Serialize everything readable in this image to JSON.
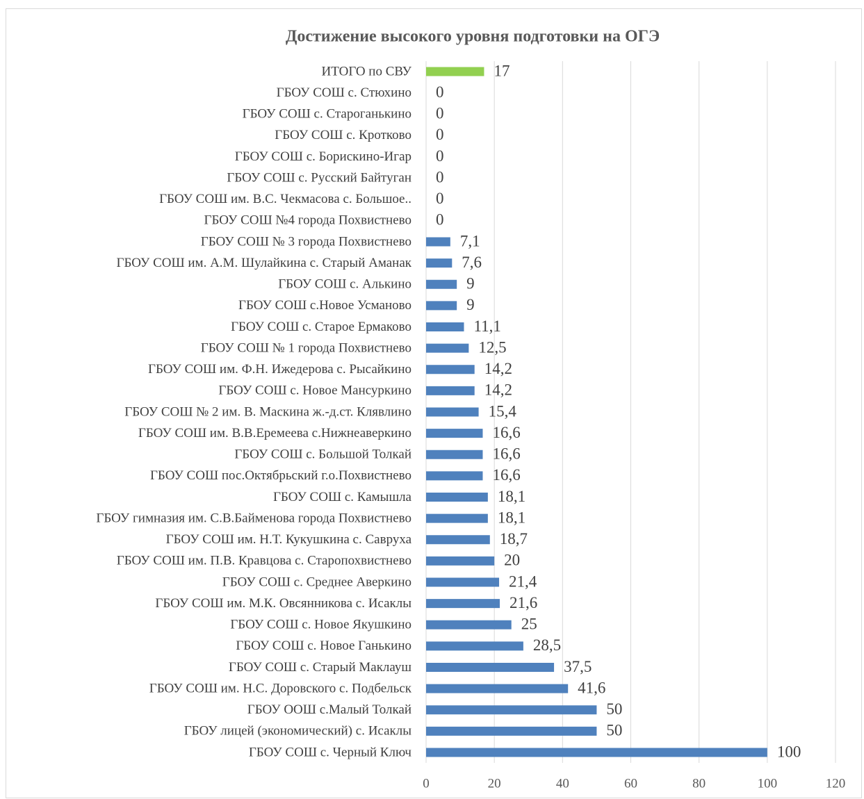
{
  "chart_data": {
    "type": "barh",
    "title": "Достижение высокого уровня подготовки на ОГЭ",
    "categories": [
      "ИТОГО по СВУ",
      "ГБОУ СОШ с. Стюхино",
      "ГБОУ СОШ с. Староганькино",
      "ГБОУ СОШ с. Кротково",
      "ГБОУ СОШ с. Борискино-Игар",
      "ГБОУ СОШ с. Русский Байтуган",
      "ГБОУ СОШ им. В.С. Чекмасова с. Большое..",
      "ГБОУ СОШ №4 города Похвистнево",
      "ГБОУ СОШ № 3 города Похвистнево",
      "ГБОУ СОШ им. А.М. Шулайкина с. Старый Аманак",
      "ГБОУ СОШ с. Алькино",
      "ГБОУ СОШ с.Новое Усманово",
      "ГБОУ СОШ с. Старое Ермаково",
      "ГБОУ СОШ № 1 города Похвистнево",
      "ГБОУ СОШ им. Ф.Н. Ижедерова с. Рысайкино",
      "ГБОУ СОШ с. Новое Мансуркино",
      "ГБОУ СОШ № 2 им. В. Маскина ж.-д.ст. Клявлино",
      "ГБОУ СОШ им. В.В.Еремеева с.Нижнеаверкино",
      "ГБОУ СОШ с. Большой Толкай",
      "ГБОУ СОШ пос.Октябрьский г.о.Похвистнево",
      "ГБОУ СОШ с. Камышла",
      "ГБОУ гимназия им. С.В.Байменова города Похвистнево",
      "ГБОУ СОШ им. Н.Т. Кукушкина с. Савруха",
      "ГБОУ СОШ им. П.В. Кравцова с. Старопохвистнево",
      "ГБОУ СОШ с. Среднее Аверкино",
      "ГБОУ СОШ им. М.К. Овсянникова с. Исаклы",
      "ГБОУ СОШ с. Новое Якушкино",
      "ГБОУ СОШ с. Новое Ганькино",
      "ГБОУ СОШ с. Старый Маклауш",
      "ГБОУ СОШ им. Н.С. Доровского с. Подбельск",
      "ГБОУ ООШ с.Малый Толкай",
      "ГБОУ лицей (экономический) с. Исаклы",
      "ГБОУ СОШ с. Черный Ключ"
    ],
    "values": [
      17,
      0,
      0,
      0,
      0,
      0,
      0,
      0,
      7.1,
      7.6,
      9,
      9,
      11.1,
      12.5,
      14.2,
      14.2,
      15.4,
      16.6,
      16.6,
      16.6,
      18.1,
      18.1,
      18.7,
      20,
      21.4,
      21.6,
      25,
      28.5,
      37.5,
      41.6,
      50,
      50,
      100
    ],
    "value_labels": [
      "17",
      "0",
      "0",
      "0",
      "0",
      "0",
      "0",
      "0",
      "7,1",
      "7,6",
      "9",
      "9",
      "11,1",
      "12,5",
      "14,2",
      "14,2",
      "15,4",
      "16,6",
      "16,6",
      "16,6",
      "18,1",
      "18,1",
      "18,7",
      "20",
      "21,4",
      "21,6",
      "25",
      "28,5",
      "37,5",
      "41,6",
      "50",
      "50",
      "100"
    ],
    "colors": [
      "#92d050",
      "#4f81bd",
      "#4f81bd",
      "#4f81bd",
      "#4f81bd",
      "#4f81bd",
      "#4f81bd",
      "#4f81bd",
      "#4f81bd",
      "#4f81bd",
      "#4f81bd",
      "#4f81bd",
      "#4f81bd",
      "#4f81bd",
      "#4f81bd",
      "#4f81bd",
      "#4f81bd",
      "#4f81bd",
      "#4f81bd",
      "#4f81bd",
      "#4f81bd",
      "#4f81bd",
      "#4f81bd",
      "#4f81bd",
      "#4f81bd",
      "#4f81bd",
      "#4f81bd",
      "#4f81bd",
      "#4f81bd",
      "#4f81bd",
      "#4f81bd",
      "#4f81bd",
      "#4f81bd"
    ],
    "xlim": [
      0,
      120
    ],
    "xticks": [
      0,
      20,
      40,
      60,
      80,
      100,
      120
    ],
    "grid": true
  }
}
